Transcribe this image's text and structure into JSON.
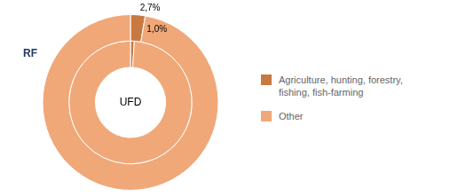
{
  "chart_data": {
    "type": "doughnut",
    "categories": [
      "Agriculture, hunting, forestry,\nfishing, fish-farming",
      "Other"
    ],
    "colors": [
      "#c87941",
      "#f0a878"
    ],
    "series": [
      {
        "name": "RF",
        "values": [
          2.7,
          97.3
        ],
        "value_labels": [
          "2,7%",
          null
        ]
      },
      {
        "name": "UFD",
        "values": [
          1.0,
          99.0
        ],
        "value_labels": [
          "1,0%",
          null
        ]
      }
    ],
    "legend": "right"
  }
}
